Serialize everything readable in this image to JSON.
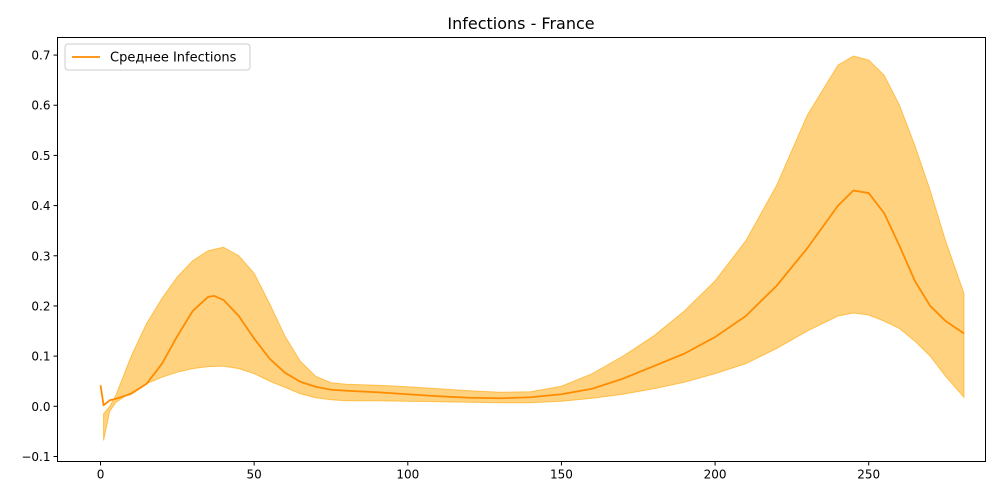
{
  "chart_data": {
    "type": "area",
    "title": "Infections - France",
    "xlabel": "",
    "ylabel": "",
    "xlim": [
      -14,
      288
    ],
    "ylim": [
      -0.11,
      0.735
    ],
    "x_ticks": [
      0,
      50,
      100,
      150,
      200,
      250
    ],
    "y_ticks": [
      -0.1,
      0.0,
      0.1,
      0.2,
      0.3,
      0.4,
      0.5,
      0.6,
      0.7
    ],
    "y_tick_labels": [
      "−0.1",
      "0.0",
      "0.1",
      "0.2",
      "0.3",
      "0.4",
      "0.5",
      "0.6",
      "0.7"
    ],
    "grid": false,
    "legend_position": "upper-left",
    "series": [
      {
        "name": "Среднее Infections",
        "color": "#ff8c00",
        "x": [
          0,
          1,
          3,
          5,
          10,
          15,
          20,
          25,
          30,
          35,
          37,
          40,
          45,
          50,
          55,
          60,
          65,
          70,
          75,
          80,
          90,
          100,
          110,
          120,
          130,
          140,
          150,
          160,
          170,
          180,
          190,
          200,
          210,
          220,
          230,
          240,
          245,
          250,
          255,
          260,
          265,
          270,
          275,
          281
        ],
        "values": [
          0.042,
          0.002,
          0.012,
          0.015,
          0.025,
          0.045,
          0.085,
          0.14,
          0.19,
          0.218,
          0.22,
          0.212,
          0.18,
          0.135,
          0.095,
          0.067,
          0.049,
          0.039,
          0.033,
          0.031,
          0.028,
          0.024,
          0.02,
          0.017,
          0.016,
          0.018,
          0.024,
          0.035,
          0.055,
          0.08,
          0.105,
          0.138,
          0.18,
          0.24,
          0.315,
          0.4,
          0.43,
          0.425,
          0.385,
          0.32,
          0.25,
          0.2,
          0.17,
          0.145
        ]
      }
    ],
    "band": {
      "color": "#ffa500",
      "opacity": 0.5,
      "x": [
        1,
        3,
        5,
        10,
        15,
        20,
        25,
        30,
        35,
        40,
        45,
        50,
        55,
        60,
        65,
        70,
        75,
        80,
        90,
        100,
        110,
        120,
        130,
        140,
        150,
        160,
        170,
        180,
        190,
        200,
        210,
        220,
        230,
        240,
        245,
        250,
        255,
        260,
        265,
        270,
        275,
        281
      ],
      "upper": [
        -0.015,
        0.0,
        0.022,
        0.1,
        0.165,
        0.215,
        0.258,
        0.29,
        0.31,
        0.317,
        0.3,
        0.265,
        0.205,
        0.14,
        0.09,
        0.06,
        0.047,
        0.044,
        0.042,
        0.039,
        0.035,
        0.031,
        0.028,
        0.029,
        0.04,
        0.065,
        0.1,
        0.14,
        0.19,
        0.25,
        0.33,
        0.44,
        0.58,
        0.68,
        0.698,
        0.69,
        0.66,
        0.6,
        0.52,
        0.43,
        0.33,
        0.225
      ],
      "lower": [
        -0.068,
        -0.01,
        0.008,
        0.028,
        0.045,
        0.058,
        0.068,
        0.075,
        0.079,
        0.08,
        0.075,
        0.065,
        0.05,
        0.038,
        0.025,
        0.017,
        0.013,
        0.011,
        0.011,
        0.01,
        0.009,
        0.008,
        0.007,
        0.007,
        0.01,
        0.016,
        0.024,
        0.035,
        0.048,
        0.065,
        0.085,
        0.115,
        0.15,
        0.18,
        0.186,
        0.182,
        0.17,
        0.155,
        0.13,
        0.1,
        0.06,
        0.018
      ]
    }
  }
}
